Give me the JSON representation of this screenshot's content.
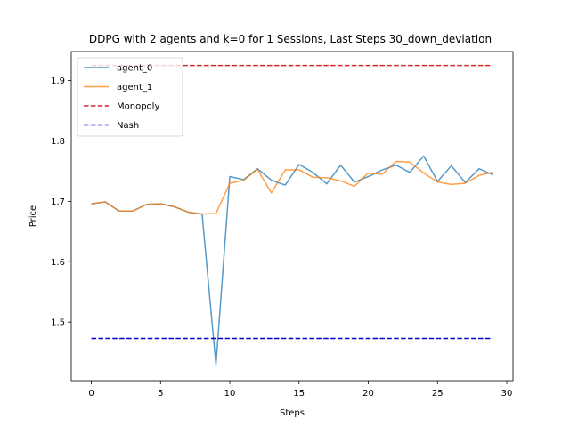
{
  "chart_data": {
    "type": "line",
    "title": "DDPG with 2 agents and k=0 for 1 Sessions, Last Steps 30_down_deviation",
    "xlabel": "Steps",
    "ylabel": "Price",
    "xlim": [
      -1.45,
      30.45
    ],
    "ylim": [
      1.403,
      1.948
    ],
    "xticks": [
      0,
      5,
      10,
      15,
      20,
      25,
      30
    ],
    "yticks": [
      1.5,
      1.6,
      1.7,
      1.8,
      1.9
    ],
    "grid": false,
    "legend_position": "top-left",
    "x": [
      0,
      1,
      2,
      3,
      4,
      5,
      6,
      7,
      8,
      9,
      10,
      11,
      12,
      13,
      14,
      15,
      16,
      17,
      18,
      19,
      20,
      21,
      22,
      23,
      24,
      25,
      26,
      27,
      28,
      29
    ],
    "series": [
      {
        "name": "agent_0",
        "color": "#1f77b4",
        "style": "solid",
        "values": [
          1.696,
          1.699,
          1.684,
          1.684,
          1.695,
          1.696,
          1.691,
          1.682,
          1.679,
          1.429,
          1.741,
          1.736,
          1.754,
          1.735,
          1.727,
          1.761,
          1.748,
          1.729,
          1.76,
          1.732,
          1.741,
          1.752,
          1.76,
          1.748,
          1.775,
          1.733,
          1.759,
          1.731,
          1.754,
          1.744
        ]
      },
      {
        "name": "agent_1",
        "color": "#ff7f0e",
        "style": "solid",
        "values": [
          1.696,
          1.699,
          1.684,
          1.684,
          1.695,
          1.696,
          1.691,
          1.682,
          1.679,
          1.68,
          1.73,
          1.735,
          1.753,
          1.714,
          1.752,
          1.752,
          1.74,
          1.739,
          1.734,
          1.725,
          1.747,
          1.745,
          1.766,
          1.765,
          1.747,
          1.732,
          1.728,
          1.73,
          1.743,
          1.748
        ]
      },
      {
        "name": "Monopoly",
        "color": "#d62728",
        "style": "dashed",
        "x": [
          0,
          29
        ],
        "values": [
          1.925,
          1.925
        ]
      },
      {
        "name": "Nash",
        "color": "#0000cc",
        "style": "dashed",
        "x": [
          0,
          29
        ],
        "values": [
          1.473,
          1.473
        ]
      }
    ]
  }
}
